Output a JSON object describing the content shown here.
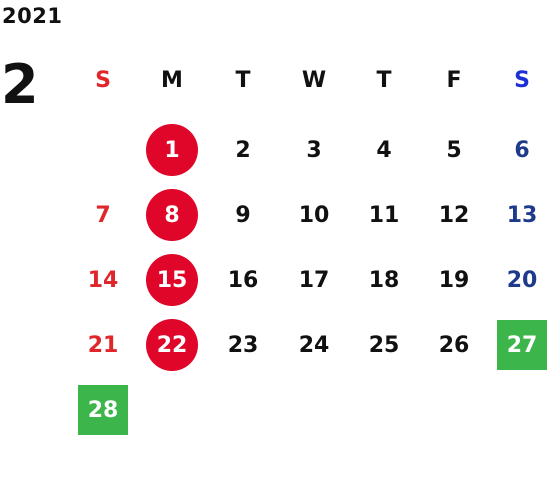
{
  "year": "2021",
  "month": "2",
  "colors": {
    "sunday": "#e0262a",
    "saturday_header": "#1c2fd6",
    "saturday": "#1e3a8a",
    "weekday": "#111111",
    "holiday_circle": "#e0062a",
    "highlight_square": "#3cb54a"
  },
  "weekdays": [
    "S",
    "M",
    "T",
    "W",
    "T",
    "F",
    "S"
  ],
  "weeks": [
    [
      {
        "day": ""
      },
      {
        "day": "1",
        "mark": "circle"
      },
      {
        "day": "2"
      },
      {
        "day": "3"
      },
      {
        "day": "4"
      },
      {
        "day": "5"
      },
      {
        "day": "6"
      }
    ],
    [
      {
        "day": "7"
      },
      {
        "day": "8",
        "mark": "circle"
      },
      {
        "day": "9"
      },
      {
        "day": "10"
      },
      {
        "day": "11"
      },
      {
        "day": "12"
      },
      {
        "day": "13"
      }
    ],
    [
      {
        "day": "14"
      },
      {
        "day": "15",
        "mark": "circle"
      },
      {
        "day": "16"
      },
      {
        "day": "17"
      },
      {
        "day": "18"
      },
      {
        "day": "19"
      },
      {
        "day": "20"
      }
    ],
    [
      {
        "day": "21"
      },
      {
        "day": "22",
        "mark": "circle"
      },
      {
        "day": "23"
      },
      {
        "day": "24"
      },
      {
        "day": "25"
      },
      {
        "day": "26"
      },
      {
        "day": "27",
        "mark": "square"
      }
    ],
    [
      {
        "day": "28",
        "mark": "square"
      },
      {
        "day": ""
      },
      {
        "day": ""
      },
      {
        "day": ""
      },
      {
        "day": ""
      },
      {
        "day": ""
      },
      {
        "day": ""
      }
    ]
  ]
}
